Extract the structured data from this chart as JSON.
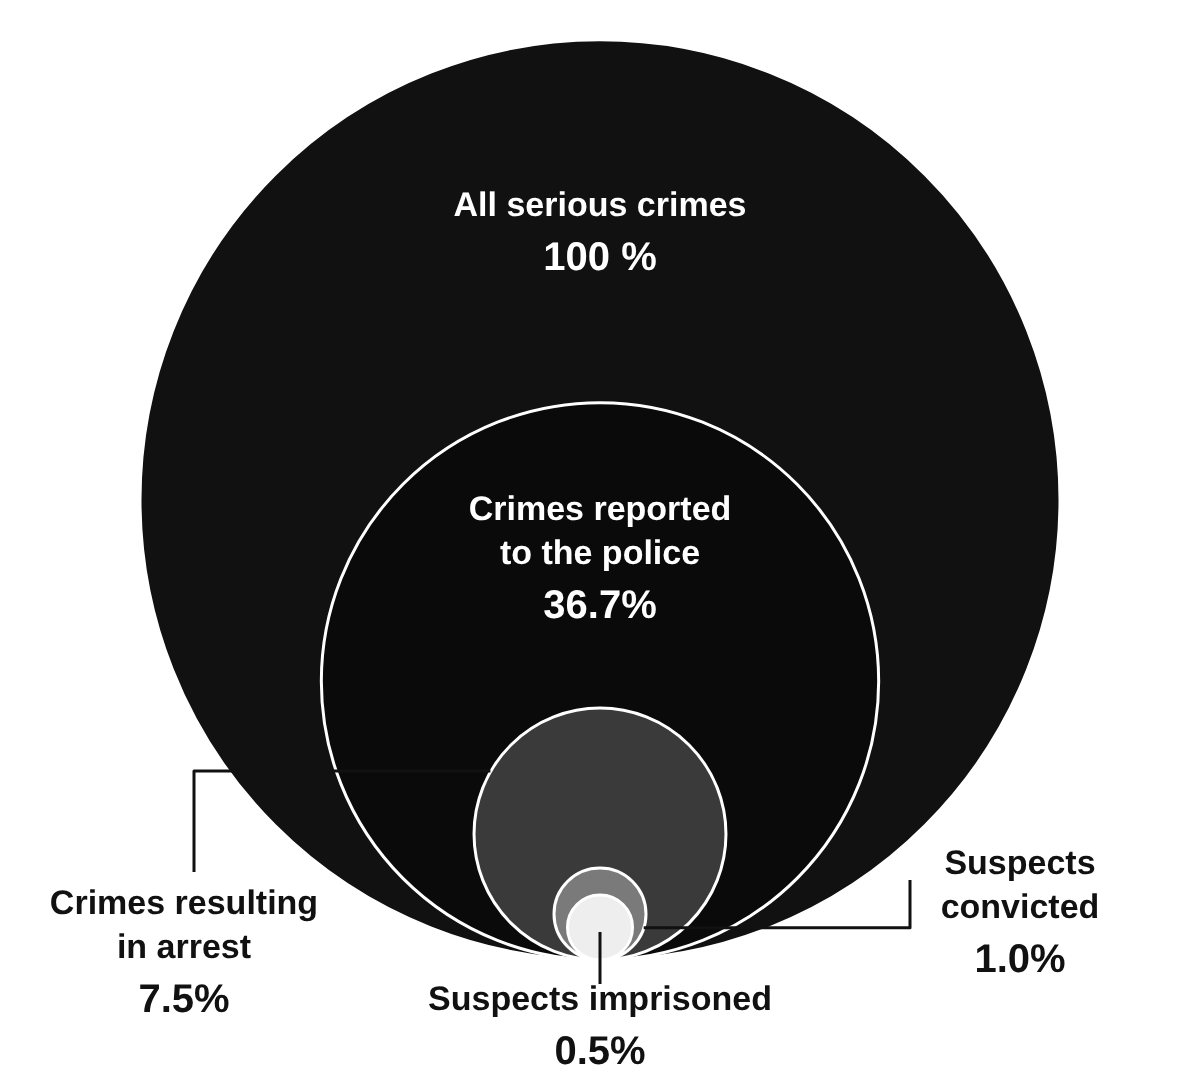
{
  "chart_data": {
    "type": "other",
    "categories": [
      "All serious crimes",
      "Crimes reported to the police",
      "Crimes resulting in arrest",
      "Suspects convicted",
      "Suspects imprisoned"
    ],
    "values": [
      100,
      36.7,
      7.5,
      1.0,
      0.5
    ],
    "value_labels": [
      "100 %",
      "36.7%",
      "7.5%",
      "1.0%",
      "0.5%"
    ],
    "colors": [
      "#111111",
      "#0a0a0a",
      "#3a3a3a",
      "#7a7a7a",
      "#eeeeee"
    ]
  }
}
